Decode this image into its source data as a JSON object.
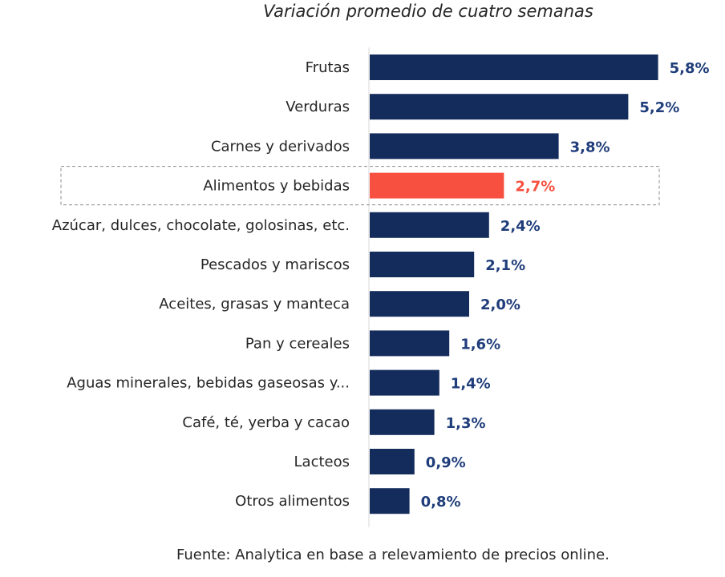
{
  "chart_data": {
    "type": "bar",
    "orientation": "horizontal",
    "title": "Variación promedio de cuatro semanas",
    "source": "Fuente: Analytica en base a relevamiento de precios online.",
    "categories": [
      "Frutas",
      "Verduras",
      "Carnes y derivados",
      "Alimentos y bebidas",
      "Azúcar, dulces, chocolate, golosinas, etc.",
      "Pescados y mariscos",
      "Aceites, grasas y manteca",
      "Pan y cereales",
      "Aguas minerales, bebidas gaseosas y...",
      "Café, té, yerba y cacao",
      "Lacteos",
      "Otros alimentos"
    ],
    "values": [
      5.8,
      5.2,
      3.8,
      2.7,
      2.4,
      2.1,
      2.0,
      1.6,
      1.4,
      1.3,
      0.9,
      0.8
    ],
    "value_labels": [
      "5,8%",
      "5,2%",
      "3,8%",
      "2,7%",
      "2,4%",
      "2,1%",
      "2,0%",
      "1,6%",
      "1,4%",
      "1,3%",
      "0,9%",
      "0,8%"
    ],
    "highlight_category": "Alimentos y bebidas",
    "colors": {
      "bar": "#142c5c",
      "highlight": "#f75040",
      "label": "#1f3d7a",
      "highlight_label": "#f75040"
    },
    "xlim": [
      0,
      6.2
    ],
    "grid": false,
    "legend": "none"
  }
}
